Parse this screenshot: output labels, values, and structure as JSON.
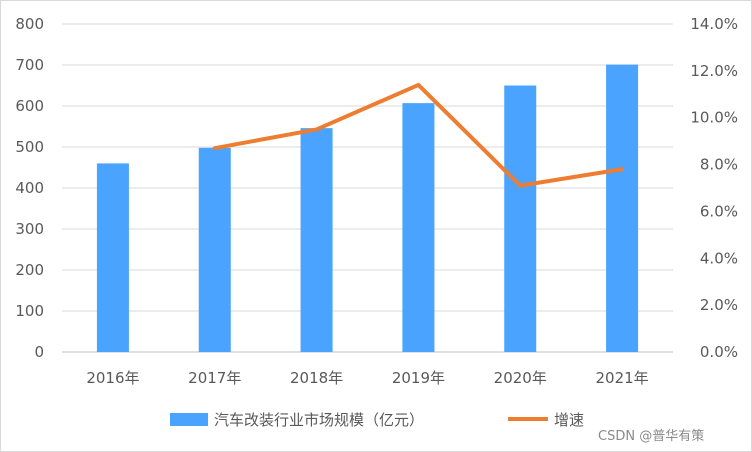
{
  "chart_data": {
    "type": "bar",
    "categories": [
      "2016年",
      "2017年",
      "2018年",
      "2019年",
      "2020年",
      "2021年"
    ],
    "series": [
      {
        "name": "汽车改装行业市场规模（亿元）",
        "type": "bar",
        "axis": "left",
        "color": "#4aa3ff",
        "values": [
          460,
          498,
          546,
          607,
          650,
          701
        ]
      },
      {
        "name": "增速",
        "type": "line",
        "axis": "right",
        "color": "#ed7d31",
        "values": [
          null,
          8.7,
          9.5,
          11.4,
          7.1,
          7.8
        ]
      }
    ],
    "ylim_left": [
      0,
      800
    ],
    "yticks_left": [
      "0",
      "100",
      "200",
      "300",
      "400",
      "500",
      "600",
      "700",
      "800"
    ],
    "ylim_right": [
      0,
      14
    ],
    "yticks_right": [
      "0.0%",
      "2.0%",
      "4.0%",
      "6.0%",
      "8.0%",
      "10.0%",
      "12.0%",
      "14.0%"
    ],
    "grid": true,
    "legend_position": "bottom"
  },
  "watermark": "CSDN @普华有策"
}
